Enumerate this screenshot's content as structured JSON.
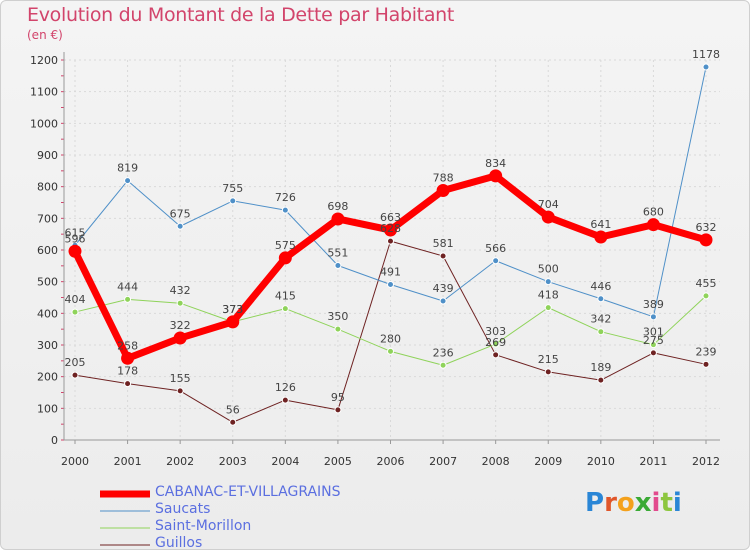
{
  "title": "Evolution du Montant de la Dette par Habitant",
  "unit": "(en €)",
  "logo": {
    "letters": [
      "P",
      "r",
      "o",
      "x",
      "i",
      "t",
      "i"
    ],
    "colors": [
      "#2a86d6",
      "#e0562a",
      "#f4a11c",
      "#3aaa35",
      "#e24a8d",
      "#8dc63f",
      "#2a86d6"
    ]
  },
  "chart_data": {
    "type": "line",
    "x": [
      "2000",
      "2001",
      "2002",
      "2003",
      "2004",
      "2005",
      "2006",
      "2007",
      "2008",
      "2009",
      "2010",
      "2011",
      "2012"
    ],
    "ylim": [
      0,
      1200
    ],
    "yticks": [
      0,
      100,
      200,
      300,
      400,
      500,
      600,
      700,
      800,
      900,
      1000,
      1100,
      1200
    ],
    "grid": true,
    "legend_position": "bottom-left",
    "series": [
      {
        "name": "CABANAC-ET-VILLAGRAINS",
        "color": "#ff0000",
        "width": 7,
        "labels": true,
        "values": [
          596,
          258,
          322,
          373,
          575,
          698,
          663,
          788,
          834,
          704,
          641,
          680,
          632
        ]
      },
      {
        "name": "Saucats",
        "color": "#4f90c8",
        "width": 1,
        "labels": true,
        "values": [
          615,
          819,
          675,
          755,
          726,
          551,
          491,
          439,
          566,
          500,
          446,
          389,
          1178
        ]
      },
      {
        "name": "Saint-Morillon",
        "color": "#8fd35a",
        "width": 1,
        "labels": true,
        "values": [
          404,
          444,
          432,
          373,
          415,
          350,
          280,
          236,
          303,
          418,
          342,
          301,
          455
        ]
      },
      {
        "name": "Guillos",
        "color": "#6e2222",
        "width": 1,
        "labels": true,
        "values": [
          205,
          178,
          155,
          56,
          126,
          95,
          628,
          581,
          269,
          215,
          189,
          275,
          239
        ]
      }
    ]
  }
}
